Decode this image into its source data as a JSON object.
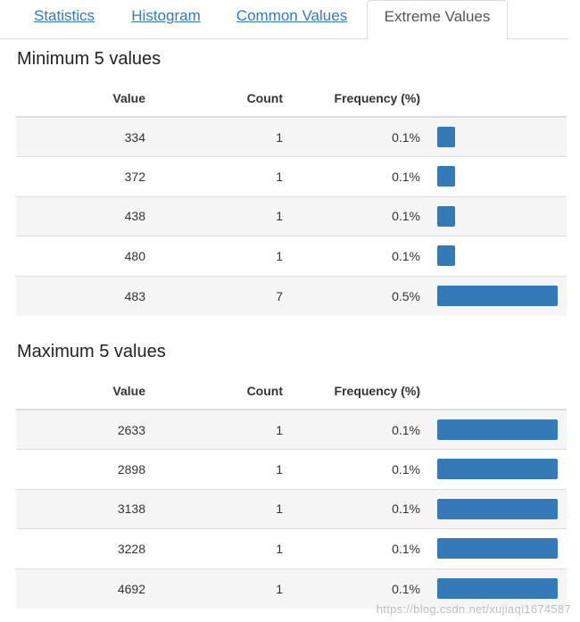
{
  "tabs": [
    {
      "label": "Statistics",
      "active": false
    },
    {
      "label": "Histogram",
      "active": false
    },
    {
      "label": "Common Values",
      "active": false
    },
    {
      "label": "Extreme Values",
      "active": true
    }
  ],
  "columns": {
    "value": "Value",
    "count": "Count",
    "frequency": "Frequency (%)"
  },
  "minimum": {
    "title": "Minimum 5 values",
    "rows": [
      {
        "value": "334",
        "count": "1",
        "frequency": "0.1%",
        "bar_fraction": 0.143
      },
      {
        "value": "372",
        "count": "1",
        "frequency": "0.1%",
        "bar_fraction": 0.143
      },
      {
        "value": "438",
        "count": "1",
        "frequency": "0.1%",
        "bar_fraction": 0.143
      },
      {
        "value": "480",
        "count": "1",
        "frequency": "0.1%",
        "bar_fraction": 0.143
      },
      {
        "value": "483",
        "count": "7",
        "frequency": "0.5%",
        "bar_fraction": 1.0
      }
    ]
  },
  "maximum": {
    "title": "Maximum 5 values",
    "rows": [
      {
        "value": "2633",
        "count": "1",
        "frequency": "0.1%",
        "bar_fraction": 1.0
      },
      {
        "value": "2898",
        "count": "1",
        "frequency": "0.1%",
        "bar_fraction": 1.0
      },
      {
        "value": "3138",
        "count": "1",
        "frequency": "0.1%",
        "bar_fraction": 1.0
      },
      {
        "value": "3228",
        "count": "1",
        "frequency": "0.1%",
        "bar_fraction": 1.0
      },
      {
        "value": "4692",
        "count": "1",
        "frequency": "0.1%",
        "bar_fraction": 1.0
      }
    ]
  },
  "colors": {
    "bar": "#337ab7",
    "link": "#337ab7",
    "row_alt": "#f5f5f5"
  },
  "watermark": "https://blog.csdn.net/xujiaqi1674587"
}
